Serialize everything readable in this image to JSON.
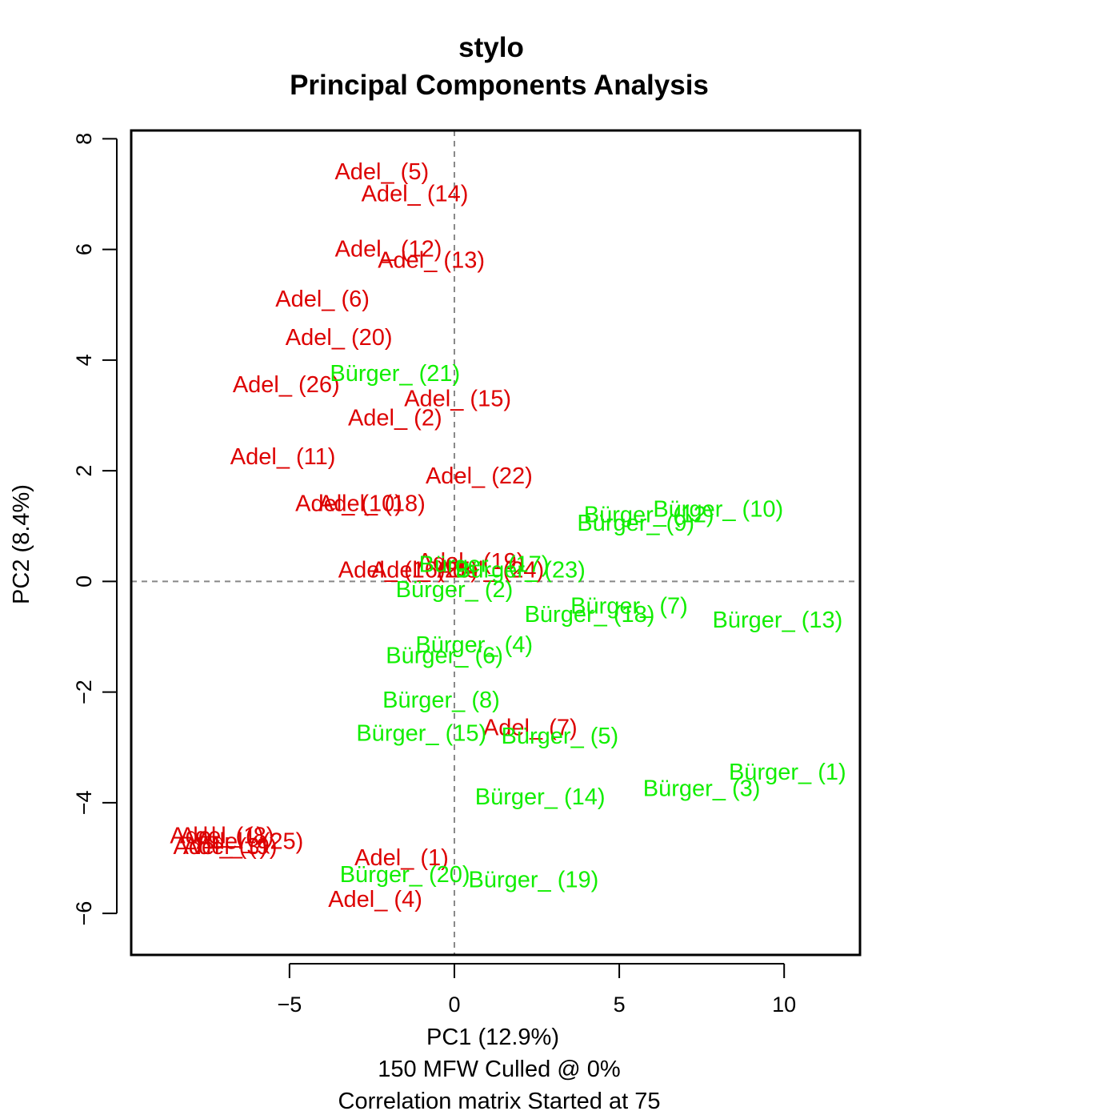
{
  "colors": {
    "adel": "#dd0000",
    "burger": "#11ee00",
    "reference_lines": "#888888",
    "frame": "#000000"
  },
  "chart_data": {
    "type": "scatter",
    "title": "stylo",
    "subtitle": "Principal Components Analysis",
    "xlabel": "PC1 (12.9%)",
    "ylabel": "PC2 (8.4%)",
    "caption_lines": [
      "150 MFW  Culled @ 0%",
      "Correlation matrix Started at 75"
    ],
    "xlim": [
      -9.8,
      12.3
    ],
    "ylim": [
      -6.75,
      8.15
    ],
    "x_ticks": [
      -5,
      0,
      5,
      10
    ],
    "y_ticks": [
      -6,
      -4,
      -2,
      0,
      2,
      4,
      6,
      8
    ],
    "x_tick_labels": [
      "−5",
      "0",
      "5",
      "10"
    ],
    "y_tick_labels": [
      "−6",
      "−4",
      "−2",
      "0",
      "2",
      "4",
      "6",
      "8"
    ],
    "reference_lines": {
      "x": 0,
      "y": 0
    },
    "grid": false,
    "legend": "none",
    "marker": "text-labels",
    "series": [
      {
        "group": "Adel",
        "points": [
          {
            "label": "Adel_ (5)",
            "x": -2.2,
            "y": 7.4
          },
          {
            "label": "Adel_ (14)",
            "x": -1.2,
            "y": 7.0
          },
          {
            "label": "Adel_ (12)",
            "x": -2.0,
            "y": 6.0
          },
          {
            "label": "Adel_ (13)",
            "x": -0.7,
            "y": 5.8
          },
          {
            "label": "Adel_ (6)",
            "x": -4.0,
            "y": 5.1
          },
          {
            "label": "Adel_ (20)",
            "x": -3.5,
            "y": 4.4
          },
          {
            "label": "Adel_ (26)",
            "x": -5.1,
            "y": 3.55
          },
          {
            "label": "Adel_ (15)",
            "x": 0.1,
            "y": 3.3
          },
          {
            "label": "Adel_ (2)",
            "x": -1.8,
            "y": 2.95
          },
          {
            "label": "Adel_ (11)",
            "x": -5.2,
            "y": 2.25
          },
          {
            "label": "Adel_ (22)",
            "x": 0.75,
            "y": 1.9
          },
          {
            "label": "Adel_ (10)",
            "x": -3.2,
            "y": 1.4
          },
          {
            "label": "Adel_ (18)",
            "x": -2.5,
            "y": 1.4
          },
          {
            "label": "Adel_ (19)",
            "x": 0.5,
            "y": 0.35
          },
          {
            "label": "Adel_ (16)",
            "x": -1.9,
            "y": 0.2
          },
          {
            "label": "Adel_ (25)",
            "x": -0.9,
            "y": 0.2
          },
          {
            "label": "Adel_ (24)",
            "x": 1.1,
            "y": 0.2
          },
          {
            "label": "Adel_ (7)",
            "x": 2.3,
            "y": -2.65
          },
          {
            "label": "Adel_ (1)",
            "x": -7.2,
            "y": -4.6
          },
          {
            "label": "Adel_ (8)",
            "x": -6.9,
            "y": -4.6
          },
          {
            "label": "Adel_ (3)",
            "x": -7.1,
            "y": -4.8
          },
          {
            "label": "Adel_ (9)",
            "x": -6.8,
            "y": -4.8
          },
          {
            "label": "Adel_ (25)",
            "x": -6.2,
            "y": -4.7
          },
          {
            "label": "Adel_ (1)",
            "x": -1.6,
            "y": -5.0
          },
          {
            "label": "Adel_ (4)",
            "x": -2.4,
            "y": -5.75
          }
        ]
      },
      {
        "group": "Bürger",
        "points": [
          {
            "label": "Bürger_ (21)",
            "x": -1.8,
            "y": 3.75
          },
          {
            "label": "Bürger_ (10)",
            "x": 8.0,
            "y": 1.3
          },
          {
            "label": "Bürger_ (12)",
            "x": 5.9,
            "y": 1.2
          },
          {
            "label": "Bürger_ (9)",
            "x": 5.5,
            "y": 1.05
          },
          {
            "label": "Bürger_ (17)",
            "x": 0.9,
            "y": 0.3
          },
          {
            "label": "Bürger_ (23)",
            "x": 2.0,
            "y": 0.2
          },
          {
            "label": "Bürger_ (2)",
            "x": 0.0,
            "y": -0.15
          },
          {
            "label": "Bürger_ (7)",
            "x": 5.3,
            "y": -0.45
          },
          {
            "label": "Bürger_ (18)",
            "x": 4.1,
            "y": -0.6
          },
          {
            "label": "Bürger_ (13)",
            "x": 9.8,
            "y": -0.7
          },
          {
            "label": "Bürger_ (4)",
            "x": 0.6,
            "y": -1.15
          },
          {
            "label": "Bürger_ (6)",
            "x": -0.3,
            "y": -1.35
          },
          {
            "label": "Bürger_ (8)",
            "x": -0.4,
            "y": -2.15
          },
          {
            "label": "Bürger_ (15)",
            "x": -1.0,
            "y": -2.75
          },
          {
            "label": "Bürger_ (5)",
            "x": 3.2,
            "y": -2.8
          },
          {
            "label": "Bürger_ (1)",
            "x": 10.1,
            "y": -3.45
          },
          {
            "label": "Bürger_ (3)",
            "x": 7.5,
            "y": -3.75
          },
          {
            "label": "Bürger_ (14)",
            "x": 2.6,
            "y": -3.9
          },
          {
            "label": "Bürger_ (20)",
            "x": -1.5,
            "y": -5.3
          },
          {
            "label": "Bürger_ (19)",
            "x": 2.4,
            "y": -5.4
          }
        ]
      }
    ]
  }
}
